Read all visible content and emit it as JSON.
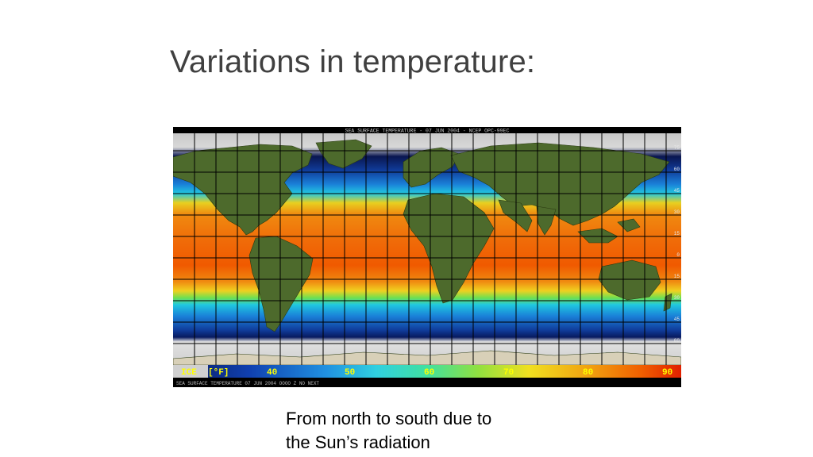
{
  "slide": {
    "title": "Variations in temperature:",
    "caption_lines": [
      "From north to south due to",
      "the Sun’s radiation"
    ]
  },
  "map": {
    "header_text": "SEA SURFACE TEMPERATURE - 07 JUN 2004 - NCEP OPC-99EC",
    "footer_text": "SEA SURFACE   TEMPERATURE   07 JUN 2004   OOOO Z   NO NEXT",
    "legend": {
      "labels": [
        "ICE",
        "[°F]",
        "40",
        "50",
        "60",
        "70",
        "80",
        "90"
      ],
      "colors": [
        "#d0d0d0",
        "#0a1a5a",
        "#1040b0",
        "#2090e0",
        "#30d0e0",
        "#40e0a0",
        "#90e040",
        "#f0e020",
        "#f0a010",
        "#f06000",
        "#e02000"
      ]
    },
    "latitude_labels": [
      "75",
      "60",
      "45",
      "30",
      "15",
      "0",
      "15",
      "30",
      "45",
      "60"
    ]
  }
}
